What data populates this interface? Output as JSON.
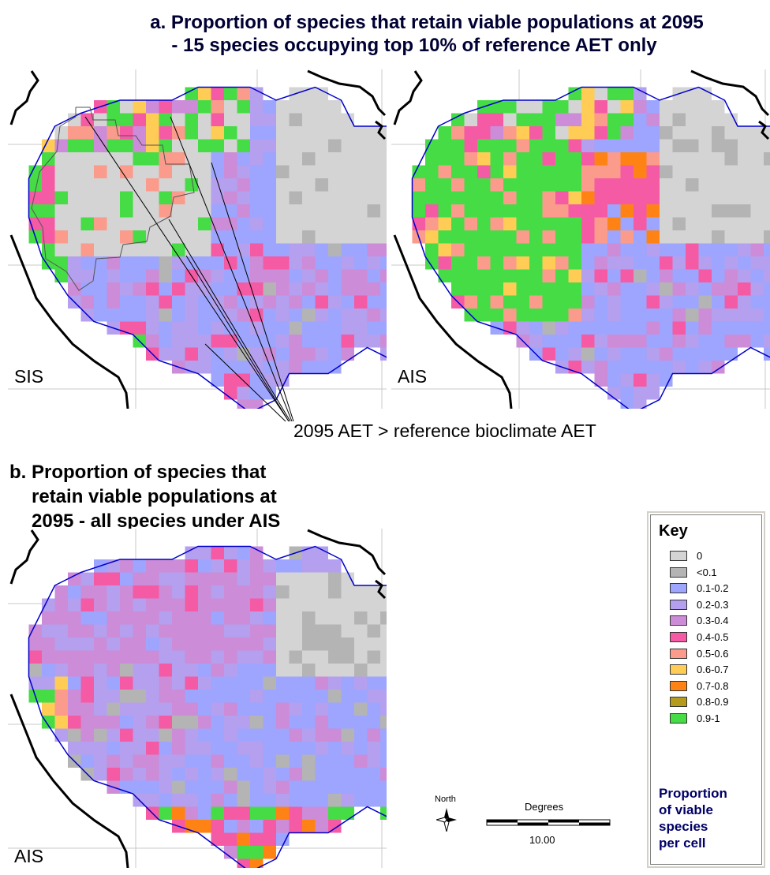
{
  "figure": {
    "title_a": {
      "line1": "a. Proportion of species that retain viable populations at 2095",
      "line2": "- 15 species occupying top 10% of reference AET only"
    },
    "annotation": "2095 AET > reference bioclimate AET",
    "title_b": {
      "line1": "b. Proportion of species that",
      "line2": "retain viable populations at",
      "line3": "2095 - all species under AIS"
    },
    "panels": [
      {
        "label": "SIS",
        "dominant_class": "0",
        "highlight": "0.9-1"
      },
      {
        "label": "AIS",
        "dominant_class": "0",
        "highlight": "0.9-1"
      },
      {
        "label": "AIS",
        "dominant_class": "0.1-0.2",
        "highlight": "0.3-0.4"
      }
    ]
  },
  "legend": {
    "title": "Key",
    "items": [
      {
        "label": "0",
        "color": "#d4d4d4"
      },
      {
        "label": "<0.1",
        "color": "#b4b4b4"
      },
      {
        "label": "0.1-0.2",
        "color": "#9da5ff"
      },
      {
        "label": "0.2-0.3",
        "color": "#b4a0ee"
      },
      {
        "label": "0.3-0.4",
        "color": "#cc8cd8"
      },
      {
        "label": "0.4-0.5",
        "color": "#f55aa5"
      },
      {
        "label": "0.5-0.6",
        "color": "#fa9b8c"
      },
      {
        "label": "0.6-0.7",
        "color": "#ffcc55"
      },
      {
        "label": "0.7-0.8",
        "color": "#ff8214"
      },
      {
        "label": "0.8-0.9",
        "color": "#b49b1e"
      },
      {
        "label": "0.9-1",
        "color": "#46dc46"
      }
    ],
    "description": [
      "Proportion",
      "of viable",
      "species",
      "per cell"
    ]
  },
  "north_arrow": {
    "label": "North"
  },
  "scale_bar": {
    "title": "Degrees",
    "value": "10.00"
  },
  "colors": {
    "title_a": "#000033",
    "legend_desc": "#000066",
    "river_boundary": "#0000cc",
    "coastline": "#000000"
  }
}
